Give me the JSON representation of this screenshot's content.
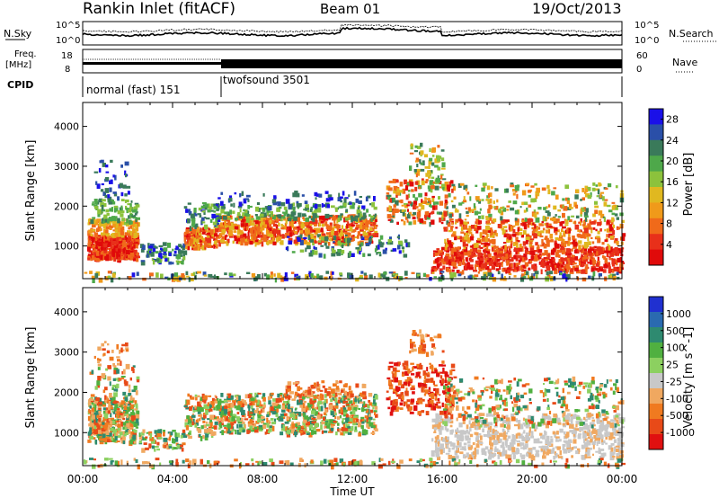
{
  "header": {
    "station": "Rankin Inlet (fitACF)",
    "beam": "Beam 01",
    "date": "19/Oct/2013"
  },
  "top_panels": {
    "nsky_label": "N.Sky",
    "nsky_ticks": [
      "10^5",
      "10^0"
    ],
    "nsearch_label": "N.Search",
    "nsearch_ticks": [
      "10^5",
      "10^0"
    ],
    "freq_label": "Freq.",
    "freq_unit": "[MHz]",
    "freq_ticks": [
      "18",
      "8"
    ],
    "nave_label": "Nave",
    "nave_ticks": [
      "60",
      "0"
    ],
    "cpid_label": "CPID",
    "cpid_segments": [
      {
        "name": "normal (fast) 151",
        "start_hour": 0,
        "end_hour": 6
      },
      {
        "name": "twofsound 3501",
        "start_hour": 6,
        "end_hour": 24
      }
    ]
  },
  "chart_data": [
    {
      "type": "heatmap",
      "title": "",
      "xlabel": "Time UT",
      "ylabel": "Slant Range [km]",
      "x_tick_labels": [
        "00:00",
        "04:00",
        "08:00",
        "12:00",
        "16:00",
        "20:00",
        "00:00"
      ],
      "xlim_hours": [
        0,
        24
      ],
      "y_ticks": [
        1000,
        2000,
        3000,
        4000
      ],
      "ylim_km": [
        180,
        4600
      ],
      "colorbar": {
        "label": "Power [dB]",
        "ticks": [
          "4",
          "8",
          "12",
          "16",
          "20",
          "24",
          "28"
        ],
        "range": [
          0,
          30
        ],
        "colors": [
          "#1a10e8",
          "#2a4fa8",
          "#3a7a5a",
          "#4ea84a",
          "#8cc23c",
          "#e0b820",
          "#f09a1a",
          "#f06a1a",
          "#e8301a",
          "#e00a0a"
        ]
      },
      "scatter_band_km": [
        180,
        380
      ]
    },
    {
      "type": "heatmap",
      "title": "",
      "xlabel": "Time UT",
      "ylabel": "Slant Range [km]",
      "x_tick_labels": [
        "00:00",
        "04:00",
        "08:00",
        "12:00",
        "16:00",
        "20:00",
        "00:00"
      ],
      "xlim_hours": [
        0,
        24
      ],
      "y_ticks": [
        1000,
        2000,
        3000,
        4000
      ],
      "ylim_km": [
        180,
        4600
      ],
      "colorbar": {
        "label": "Velocity [m s^-1]",
        "ticks": [
          "1000",
          "500",
          "100",
          "25",
          "-25",
          "-100",
          "-500",
          "-1000"
        ],
        "colors": [
          "#2030d0",
          "#2a6ab0",
          "#2e8a70",
          "#50b040",
          "#8cd060",
          "#c8c8c8",
          "#f0a860",
          "#f07a20",
          "#e84a18",
          "#e01010"
        ]
      }
    }
  ],
  "colors": {
    "power_red": "#e8301a",
    "power_orange": "#f07a1a",
    "power_green": "#4ea84a",
    "power_blue": "#2a4fa8",
    "vel_orange": "#f07a20",
    "vel_grey": "#c8c8c8",
    "vel_green": "#3a9a5a"
  }
}
